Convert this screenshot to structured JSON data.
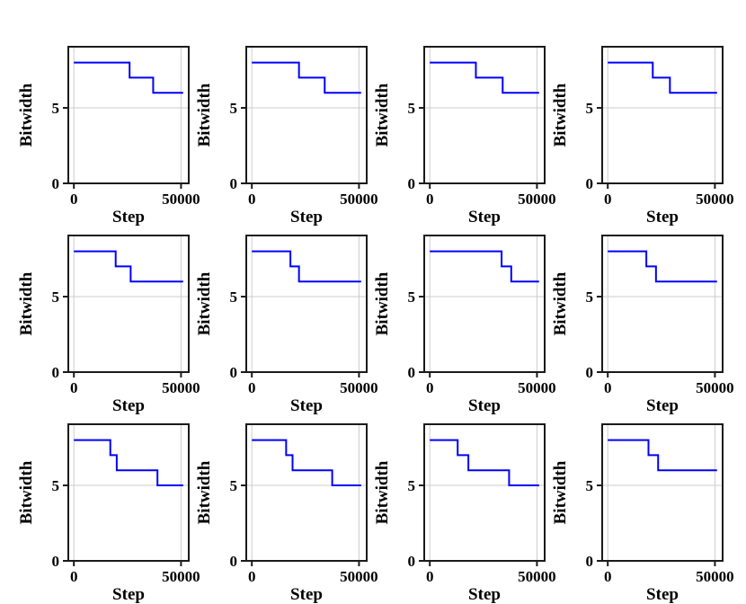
{
  "figure": {
    "background": "#ffffff"
  },
  "chart_data": {
    "type": "line",
    "subtype": "step-post",
    "grid": {
      "rows": 3,
      "cols": 4
    },
    "common": {
      "title": "",
      "xlabel": "Step",
      "ylabel": "Bitwidth",
      "xticks": [
        0,
        50000
      ],
      "xtick_labels": [
        "0",
        "50000"
      ],
      "yticks": [
        0,
        5
      ],
      "ytick_labels": [
        "0",
        "5"
      ],
      "xlim": [
        -2600,
        53600
      ],
      "ylim": [
        0,
        9.05
      ],
      "x_end": 51000,
      "grid_on": true,
      "legend": "none",
      "colors": {
        "line": "#0000ff",
        "spine": "#1a1a1a",
        "gridline": "#cccccc",
        "text": "#000000"
      }
    },
    "plots": [
      {
        "row": 1,
        "col": 1,
        "steps": [
          [
            0,
            8
          ],
          [
            26000,
            7
          ],
          [
            37000,
            6
          ]
        ]
      },
      {
        "row": 1,
        "col": 2,
        "steps": [
          [
            0,
            8
          ],
          [
            22000,
            7
          ],
          [
            34000,
            6
          ]
        ]
      },
      {
        "row": 1,
        "col": 3,
        "steps": [
          [
            0,
            8
          ],
          [
            21500,
            7
          ],
          [
            34000,
            6
          ]
        ]
      },
      {
        "row": 1,
        "col": 4,
        "steps": [
          [
            0,
            8
          ],
          [
            21000,
            7
          ],
          [
            29000,
            6
          ]
        ]
      },
      {
        "row": 2,
        "col": 1,
        "steps": [
          [
            0,
            8
          ],
          [
            19500,
            7
          ],
          [
            26500,
            6
          ]
        ]
      },
      {
        "row": 2,
        "col": 2,
        "steps": [
          [
            0,
            8
          ],
          [
            18000,
            7
          ],
          [
            22000,
            6
          ]
        ]
      },
      {
        "row": 2,
        "col": 3,
        "steps": [
          [
            0,
            8
          ],
          [
            33500,
            7
          ],
          [
            38000,
            6
          ]
        ]
      },
      {
        "row": 2,
        "col": 4,
        "steps": [
          [
            0,
            8
          ],
          [
            18000,
            7
          ],
          [
            22500,
            6
          ]
        ]
      },
      {
        "row": 3,
        "col": 1,
        "steps": [
          [
            0,
            8
          ],
          [
            17000,
            7
          ],
          [
            20000,
            6
          ],
          [
            39000,
            5
          ]
        ]
      },
      {
        "row": 3,
        "col": 2,
        "steps": [
          [
            0,
            8
          ],
          [
            16000,
            7
          ],
          [
            19000,
            6
          ],
          [
            37500,
            5
          ]
        ]
      },
      {
        "row": 3,
        "col": 3,
        "steps": [
          [
            0,
            8
          ],
          [
            13000,
            7
          ],
          [
            18000,
            6
          ],
          [
            37000,
            5
          ]
        ]
      },
      {
        "row": 3,
        "col": 4,
        "steps": [
          [
            0,
            8
          ],
          [
            19000,
            7
          ],
          [
            23500,
            6
          ]
        ]
      }
    ]
  }
}
